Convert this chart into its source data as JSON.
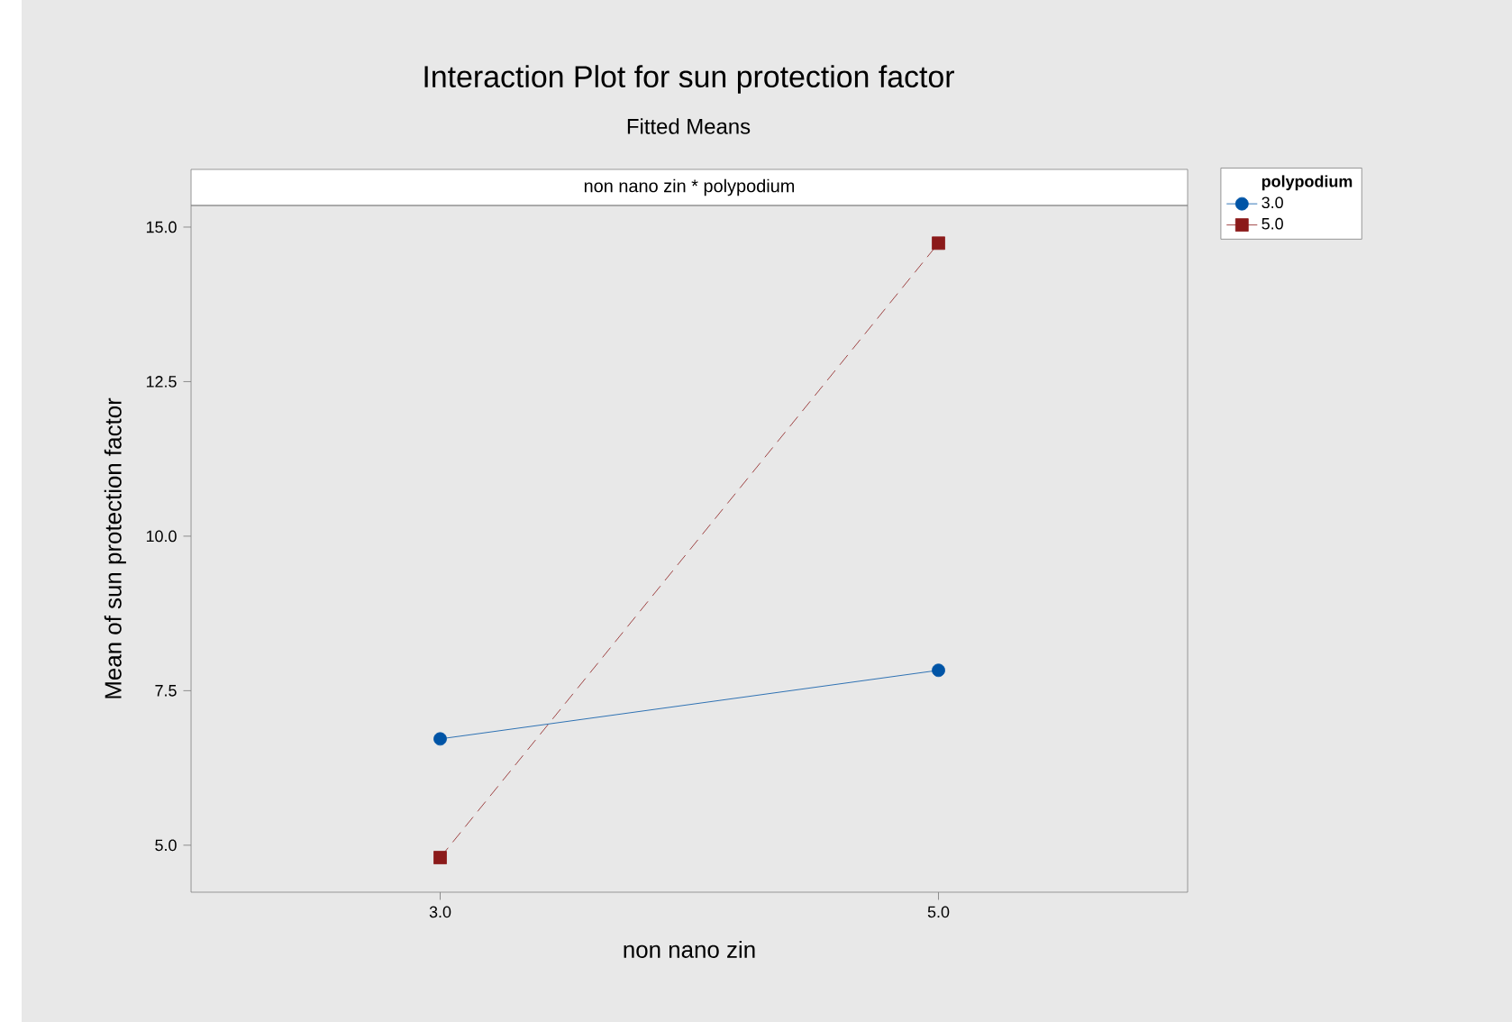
{
  "chart_data": {
    "type": "line",
    "title": "Interaction Plot for sun protection factor",
    "subtitle": "Fitted Means",
    "annotations": [
      "non nano zin * polypodium"
    ],
    "xlabel": "non nano zin",
    "ylabel": "Mean of sun protection factor",
    "legend_title": "polypodium",
    "x": [
      3,
      5
    ],
    "series": [
      {
        "name": "3.0",
        "color": "#0054a6",
        "values": [
          6.72,
          7.83
        ],
        "marker": "circle",
        "line_style": "solid"
      },
      {
        "name": "5.0",
        "color": "#8b1a1a",
        "values": [
          4.8,
          14.74
        ],
        "marker": "square",
        "line_style": "dashed"
      }
    ],
    "xlim": [
      2,
      6
    ],
    "ylim": [
      4.24,
      15.35
    ],
    "xticks": [
      {
        "value": 3,
        "label": "3.0"
      },
      {
        "value": 5,
        "label": "5.0"
      }
    ],
    "yticks": [
      {
        "value": 5,
        "label": "5.0"
      },
      {
        "value": 7.5,
        "label": "7.5"
      },
      {
        "value": 10,
        "label": "10.0"
      },
      {
        "value": 12.5,
        "label": "12.5"
      },
      {
        "value": 15,
        "label": "15.0"
      }
    ],
    "grid": false,
    "legend": "top right"
  }
}
